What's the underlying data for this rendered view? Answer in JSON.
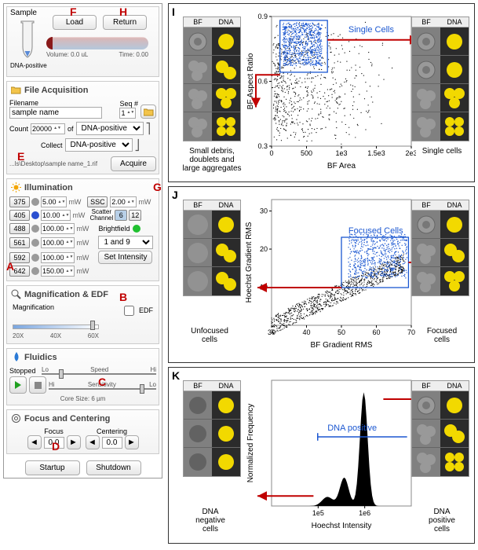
{
  "colors": {
    "red_label": "#c00000",
    "blue_gate": "#1b57d1",
    "yellow_dna": "#f2d900",
    "dark_cell": "#2b2b2b",
    "grey_cell": "#808080",
    "laser_405": "#2a4fd0",
    "laser_488": "#15a3d6",
    "laser_561": "#d8d100",
    "laser_592": "#e07a00",
    "laser_642": "#b02020",
    "laser_off": "#9a9a9a",
    "bf_green": "#20c030"
  },
  "labels": {
    "A": "A",
    "B": "B",
    "C": "C",
    "D": "D",
    "E": "E",
    "F": "F",
    "G": "G",
    "H": "H",
    "I": "I",
    "J": "J",
    "K": "K"
  },
  "sample": {
    "title": "Sample",
    "subtitle": "DNA-positive",
    "load": "Load",
    "return": "Return",
    "volume_label": "Volume:",
    "volume_value": "0.0 uL",
    "time_label": "Time:",
    "time_value": "0.00",
    "capsule_fill_pct": 6
  },
  "file_acq": {
    "title": "File Acquisition",
    "filename_label": "Filename",
    "filename_value": "sample name",
    "seq_label": "Seq #",
    "seq_value": "1",
    "count_label": "Count",
    "count_value": "20000",
    "of": "of",
    "of_value": "DNA-positive",
    "collect_label": "Collect",
    "collect_value": "DNA-positive",
    "path": "...ls\\Desktop\\sample name_1.rif",
    "acquire": "Acquire"
  },
  "illum": {
    "title": "Illumination",
    "unit": "mW",
    "lasers": [
      {
        "wl": "375",
        "on": false,
        "power": "5.00"
      },
      {
        "wl": "405",
        "on": true,
        "power": "10.00"
      },
      {
        "wl": "488",
        "on": false,
        "power": "100.00"
      },
      {
        "wl": "561",
        "on": false,
        "power": "100.00"
      },
      {
        "wl": "592",
        "on": false,
        "power": "100.00"
      },
      {
        "wl": "642",
        "on": false,
        "power": "150.00"
      }
    ],
    "ssc_label": "SSC",
    "ssc_value": "2.00",
    "scatter_label": "Scatter\nChannel",
    "scatter_a": "6",
    "scatter_b": "12",
    "brightfield_label": "Brightfield",
    "bf_select": "1 and 9",
    "set_intensity": "Set Intensity"
  },
  "mag": {
    "title": "Magnification & EDF",
    "mag_label": "Magnification",
    "ticks": [
      "20X",
      "40X",
      "60X"
    ],
    "edf_label": "EDF",
    "edf_checked": false,
    "slider_pos_pct": 95
  },
  "fluidics": {
    "title": "Fluidics",
    "status": "Stopped",
    "speed_label": "Speed",
    "sens_label": "Sensitivity",
    "lo": "Lo",
    "hi": "Hi",
    "core_label": "Core Size:",
    "core_value": "6 µm",
    "speed_pos_pct": 15,
    "sens_pos_pct": 85
  },
  "focus": {
    "title": "Focus and Centering",
    "focus_label": "Focus",
    "focus_value": "0.0",
    "centering_label": "Centering",
    "centering_value": "0.0"
  },
  "bottom": {
    "startup": "Startup",
    "shutdown": "Shutdown"
  },
  "panels": {
    "bf": "BF",
    "dna": "DNA",
    "I": {
      "y_label": "BF Aspect Ratio",
      "x_label": "BF Area",
      "x_ticks": [
        "0",
        "500",
        "1e3",
        "1.5e3",
        "2e3"
      ],
      "y_ticks": [
        "0.3",
        "0.6",
        "0.9"
      ],
      "gate": "Single Cells",
      "left_caption": "Small debris,\ndoublets and\nlarge aggregates",
      "right_caption": "Single cells"
    },
    "J": {
      "y_label": "Hoechst Gradient RMS",
      "x_label": "BF Gradient RMS",
      "x_ticks": [
        "30",
        "40",
        "50",
        "60",
        "70"
      ],
      "y_ticks": [
        "10",
        "20",
        "30"
      ],
      "gate": "Focused Cells",
      "left_caption": "Unfocused\ncells",
      "right_caption": "Focused\ncells"
    },
    "K": {
      "y_label": "Normalized Frequency",
      "x_label": "Hoechst Intensity",
      "x_ticks": [
        "1e5",
        "1e6"
      ],
      "gate": "DNA positive",
      "left_caption": "DNA\nnegative\ncells",
      "right_caption": "DNA\npositive\ncells"
    }
  },
  "chart_style": {
    "point_color_main": "#000000",
    "point_color_gate": "#1b57d1",
    "axis_fontsize": 10,
    "gate_fontsize": 11,
    "tick_fontsize": 9
  }
}
